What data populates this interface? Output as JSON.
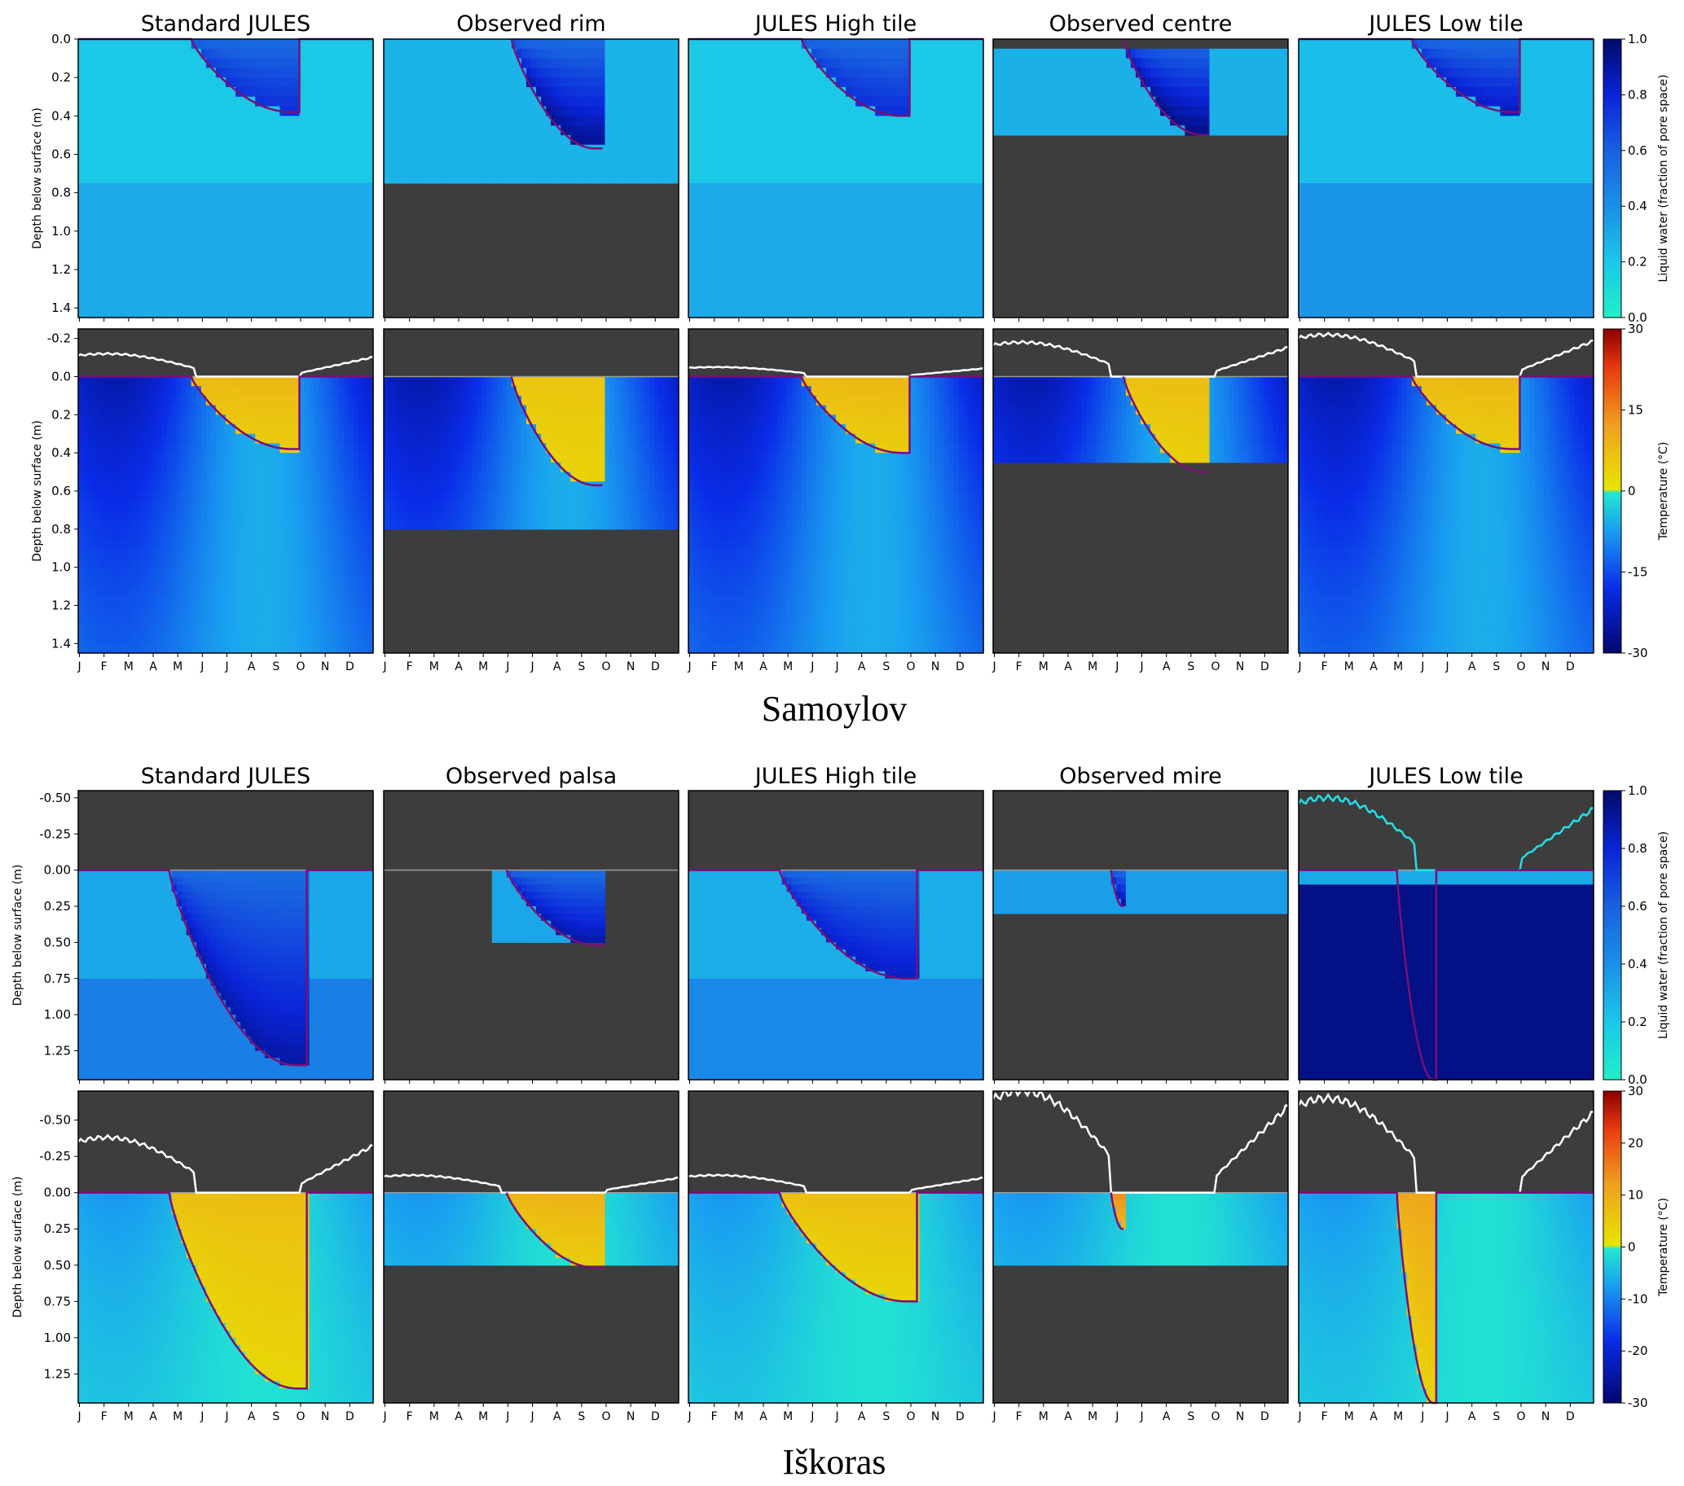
{
  "figure": {
    "sites": [
      {
        "name": "Samoylov",
        "panel_titles": [
          "Standard JULES",
          "Observed rim",
          "JULES High tile",
          "Observed centre",
          "JULES Low tile"
        ]
      },
      {
        "name": "Iškoras",
        "panel_titles": [
          "Standard JULES",
          "Observed palsa",
          "JULES High tile",
          "Observed mire",
          "JULES Low tile"
        ]
      }
    ],
    "ylabel": "Depth below surface (m)",
    "month_ticks": [
      "J",
      "F",
      "M",
      "A",
      "M",
      "J",
      "J",
      "A",
      "S",
      "O",
      "N",
      "D"
    ],
    "colorbars": {
      "liquid_water": {
        "label": "Liquid water (fraction of pore space)",
        "ticks": [
          "0.0",
          "0.2",
          "0.4",
          "0.6",
          "0.8",
          "1.0"
        ]
      },
      "temperature_samoylov": {
        "label": "Temperature (°C)",
        "ticks": [
          "-30",
          "-15",
          "0",
          "15",
          "30"
        ]
      },
      "temperature_iskoras": {
        "label": "Temperature (°C)",
        "ticks": [
          "-30",
          "-20",
          "-10",
          "0",
          "10",
          "20",
          "30"
        ]
      }
    },
    "colors": {
      "no_data": "#3d3d3d",
      "active_layer_line": "#7a1075",
      "snow_line_white": "#ffffff",
      "snow_line_cyan": "#22e0e8"
    }
  },
  "chart_data": [
    {
      "type": "heatmap",
      "site": "Samoylov",
      "variable": "liquid water (fraction of pore space)",
      "ylabel": "Depth below surface (m)",
      "yticks": [
        "0.0",
        "0.2",
        "0.4",
        "0.6",
        "0.8",
        "1.0",
        "1.2",
        "1.4"
      ],
      "ylim": [
        1.45,
        0.0
      ],
      "xticks": [
        "J",
        "F",
        "M",
        "A",
        "M",
        "J",
        "J",
        "A",
        "S",
        "O",
        "N",
        "D"
      ],
      "panels": [
        {
          "title": "Standard JULES",
          "obs_max_depth": 1.45,
          "thaw": {
            "start_month": 4.6,
            "end_month": 9.0,
            "max_depth": 0.38
          },
          "wet_fraction": 0.55
        },
        {
          "title": "Observed rim",
          "obs_max_depth": 0.75,
          "thaw": {
            "start_month": 5.2,
            "end_month": 8.9,
            "max_depth": 0.57
          },
          "wet_fraction": 0.95
        },
        {
          "title": "JULES High tile",
          "obs_max_depth": 1.45,
          "thaw": {
            "start_month": 4.6,
            "end_month": 9.0,
            "max_depth": 0.4
          },
          "wet_fraction": 0.55
        },
        {
          "title": "Observed centre",
          "obs_max_depth": 0.48,
          "obs_top_gap": 0.05,
          "thaw": {
            "start_month": 5.3,
            "end_month": 8.8,
            "max_depth": 0.5
          },
          "wet_fraction": 1.0
        },
        {
          "title": "JULES Low tile",
          "obs_max_depth": 1.45,
          "thaw": {
            "start_month": 4.6,
            "end_month": 9.0,
            "max_depth": 0.38
          },
          "wet_fraction": 0.75
        }
      ]
    },
    {
      "type": "heatmap",
      "site": "Samoylov",
      "variable": "temperature (°C)",
      "ylabel": "Depth below surface (m)",
      "yticks": [
        "-0.2",
        "0.0",
        "0.2",
        "0.4",
        "0.6",
        "0.8",
        "1.0",
        "1.2",
        "1.4"
      ],
      "ylim": [
        1.45,
        -0.25
      ],
      "xticks": [
        "J",
        "F",
        "M",
        "A",
        "M",
        "J",
        "J",
        "A",
        "S",
        "O",
        "N",
        "D"
      ],
      "colorbar_range": [
        -30,
        30
      ],
      "panels": [
        {
          "title": "Standard JULES",
          "obs_max_depth": 1.45,
          "snow_max": 0.12,
          "summer_temp": 6
        },
        {
          "title": "Observed rim",
          "obs_max_depth": 0.76,
          "snow_max": 0.0,
          "summer_temp": 4
        },
        {
          "title": "JULES High tile",
          "obs_max_depth": 1.45,
          "snow_max": 0.05,
          "summer_temp": 6
        },
        {
          "title": "Observed centre",
          "obs_max_depth": 0.45,
          "snow_max": 0.18,
          "summer_temp": 5
        },
        {
          "title": "JULES Low tile",
          "obs_max_depth": 1.45,
          "snow_max": 0.22,
          "summer_temp": 6
        }
      ]
    },
    {
      "type": "heatmap",
      "site": "Iškoras",
      "variable": "liquid water (fraction of pore space)",
      "ylabel": "Depth below surface (m)",
      "yticks": [
        "-0.50",
        "-0.25",
        "0.00",
        "0.25",
        "0.50",
        "0.75",
        "1.00",
        "1.25"
      ],
      "ylim": [
        1.45,
        -0.55
      ],
      "xticks": [
        "J",
        "F",
        "M",
        "A",
        "M",
        "J",
        "J",
        "A",
        "S",
        "O",
        "N",
        "D"
      ],
      "panels": [
        {
          "title": "Standard JULES",
          "obs_max_depth": 1.45,
          "thaw": {
            "start_month": 3.7,
            "end_month": 9.3,
            "max_depth": 1.35
          },
          "wet_fraction": 0.8
        },
        {
          "title": "Observed palsa",
          "obs_max_depth": 0.5,
          "obs_start_month": 4.5,
          "obs_end_month": 9.0,
          "thaw": {
            "start_month": 5.0,
            "end_month": 9.0,
            "max_depth": 0.52
          },
          "wet_fraction": 0.85
        },
        {
          "title": "JULES High tile",
          "obs_max_depth": 1.45,
          "thaw": {
            "start_month": 3.7,
            "end_month": 9.3,
            "max_depth": 0.75
          },
          "wet_fraction": 0.7
        },
        {
          "title": "Observed mire",
          "obs_max_depth": 0.3,
          "obs_start_month": 0.0,
          "obs_end_month": 12.0,
          "thaw": {
            "start_month": 4.8,
            "end_month": 5.3,
            "max_depth": 0.25
          },
          "wet_fraction": 1.0
        },
        {
          "title": "JULES Low tile",
          "obs_max_depth": 1.45,
          "thaw": {
            "start_month": 4.0,
            "end_month": 5.6,
            "max_depth": 1.45
          },
          "wet_fraction": 1.0
        }
      ]
    },
    {
      "type": "heatmap",
      "site": "Iškoras",
      "variable": "temperature (°C)",
      "ylabel": "Depth below surface (m)",
      "yticks": [
        "-0.50",
        "-0.25",
        "0.00",
        "0.25",
        "0.50",
        "0.75",
        "1.00",
        "1.25"
      ],
      "ylim": [
        1.45,
        -0.7
      ],
      "xticks": [
        "J",
        "F",
        "M",
        "A",
        "M",
        "J",
        "J",
        "A",
        "S",
        "O",
        "N",
        "D"
      ],
      "colorbar_range": [
        -30,
        30
      ],
      "panels": [
        {
          "title": "Standard JULES",
          "obs_max_depth": 1.45,
          "snow_max": 0.38,
          "summer_temp": 5
        },
        {
          "title": "Observed palsa",
          "obs_max_depth": 0.5,
          "snow_max": 0.12,
          "summer_temp": 7
        },
        {
          "title": "JULES High tile",
          "obs_max_depth": 1.45,
          "snow_max": 0.12,
          "summer_temp": 5
        },
        {
          "title": "Observed mire",
          "obs_max_depth": 0.5,
          "snow_max": 0.7,
          "summer_temp": 12
        },
        {
          "title": "JULES Low tile",
          "obs_max_depth": 1.45,
          "snow_max": 0.65,
          "summer_temp": 9
        }
      ]
    }
  ]
}
